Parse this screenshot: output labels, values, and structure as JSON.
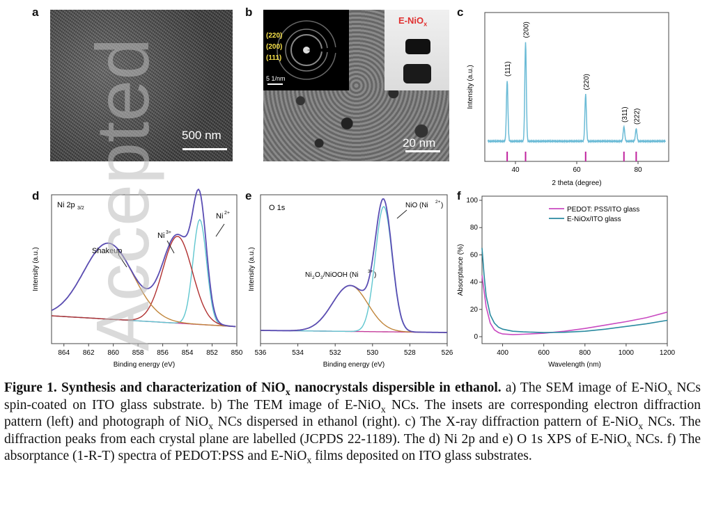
{
  "panels": {
    "a": {
      "letter": "a",
      "scale": "500 nm"
    },
    "b": {
      "letter": "b",
      "scale": "20 nm",
      "saed_labels": [
        "(220)",
        "(200)",
        "(111)"
      ],
      "saed_scale": "5 1/nm",
      "photo_label_main": "E-NiO",
      "photo_label_sub": "x"
    },
    "c": {
      "letter": "c"
    },
    "d": {
      "letter": "d"
    },
    "e": {
      "letter": "e"
    },
    "f": {
      "letter": "f"
    }
  },
  "watermark": "Accepted",
  "colors": {
    "xrd": "#6bbbd6",
    "xrd_ticks": "#c0239e",
    "envelope": "#5a4db3",
    "measured": "#7b2f9e",
    "ni3": "#b03030",
    "ni2": "#5fc6cf",
    "shakeup": "#c0853a",
    "background": "#c43b9a",
    "pedot": "#c94ac1",
    "enio": "#2a8aa0"
  },
  "chart_data": [
    {
      "type": "line",
      "panel": "c",
      "xlabel": "2 theta (degree)",
      "ylabel": "Intensity (a.u.)",
      "xlim": [
        30,
        90
      ],
      "xticks": [
        40,
        60,
        80
      ],
      "peaks": [
        {
          "label": "(111)",
          "x": 37.3,
          "height": 0.58
        },
        {
          "label": "(200)",
          "x": 43.3,
          "height": 0.95
        },
        {
          "label": "(220)",
          "x": 62.9,
          "height": 0.45
        },
        {
          "label": "(311)",
          "x": 75.4,
          "height": 0.14
        },
        {
          "label": "(222)",
          "x": 79.4,
          "height": 0.12
        }
      ],
      "reference_ticks": [
        37.3,
        43.3,
        62.9,
        75.4,
        79.4
      ]
    },
    {
      "type": "line",
      "panel": "d",
      "title": "Ni 2p",
      "title_sub": "3/2",
      "xlabel": "Binding energy (eV)",
      "ylabel": "Intensity (a.u.)",
      "xlim": [
        865,
        850
      ],
      "xticks": [
        864,
        862,
        860,
        858,
        856,
        854,
        852,
        850
      ],
      "annotations": [
        "Shakeup",
        "Ni",
        "Ni"
      ],
      "annotation_sup": [
        "",
        "3+",
        "2+"
      ],
      "series": [
        {
          "name": "Ni2+",
          "center": 853.0,
          "width": 0.55,
          "amp": 0.58
        },
        {
          "name": "Ni3+",
          "center": 854.8,
          "width": 1.2,
          "amp": 0.48
        },
        {
          "name": "Shakeup",
          "center": 860.4,
          "width": 2.0,
          "amp": 0.42
        }
      ]
    },
    {
      "type": "line",
      "panel": "e",
      "title": "O 1s",
      "xlabel": "Binding energy (eV)",
      "ylabel": "Intensity (a.u.)",
      "xlim": [
        536,
        526
      ],
      "xticks": [
        536,
        534,
        532,
        530,
        528,
        526
      ],
      "annotations": [
        "NiO (Ni",
        "Ni",
        "O",
        "/NiOOH (Ni"
      ],
      "series": [
        {
          "name": "NiO",
          "center": 529.4,
          "width": 0.45,
          "amp": 0.9
        },
        {
          "name": "Ni2O3/NiOOH",
          "center": 531.2,
          "width": 0.95,
          "amp": 0.33
        }
      ]
    },
    {
      "type": "line",
      "panel": "f",
      "xlabel": "Wavelength (nm)",
      "ylabel": "Absorptance (%)",
      "xlim": [
        300,
        1200
      ],
      "ylim": [
        0,
        100
      ],
      "xticks": [
        400,
        600,
        800,
        1000,
        1200
      ],
      "yticks": [
        0,
        20,
        40,
        60,
        80,
        100
      ],
      "legend": "top-right",
      "series": [
        {
          "name": "PEDOT: PSS/ITO glass",
          "x": [
            300,
            320,
            340,
            360,
            380,
            400,
            450,
            500,
            600,
            700,
            800,
            900,
            1000,
            1100,
            1200
          ],
          "y": [
            45,
            22,
            10,
            5,
            3,
            2,
            1.5,
            1.8,
            2.5,
            4,
            6,
            8.5,
            11,
            14,
            18
          ]
        },
        {
          "name": "E-NiOx/ITO glass",
          "x": [
            300,
            310,
            320,
            340,
            360,
            380,
            400,
            450,
            500,
            600,
            700,
            800,
            900,
            1000,
            1100,
            1200
          ],
          "y": [
            65,
            45,
            30,
            16,
            10,
            7,
            5.5,
            4,
            3.5,
            3,
            3.2,
            4,
            5.5,
            7.5,
            9.5,
            12
          ]
        }
      ]
    }
  ],
  "caption": {
    "bold": "Figure 1. Synthesis and characterization of NiO",
    "bold_sub": "x",
    "bold_tail": " nanocrystals dispersible in ethanol.",
    "segments": [
      " a) The SEM image of E-NiO",
      "x",
      " NCs spin-coated on ITO glass substrate. b) The TEM image of E-NiO",
      "x",
      " NCs. The insets are corresponding electron diffraction pattern (left) and photograph of NiO",
      "x",
      " NCs dispersed in ethanol (right). c) The X-ray diffraction pattern of E-NiO",
      "x",
      " NCs. The diffraction peaks from each crystal plane are labelled (JCPDS 22-1189). The d) Ni 2p and e) O 1s XPS of E-NiO",
      "x",
      " NCs. f) The absorptance (1-R-T) spectra of PEDOT:PSS and E-NiO",
      "x",
      " films deposited on ITO glass substrates."
    ]
  }
}
